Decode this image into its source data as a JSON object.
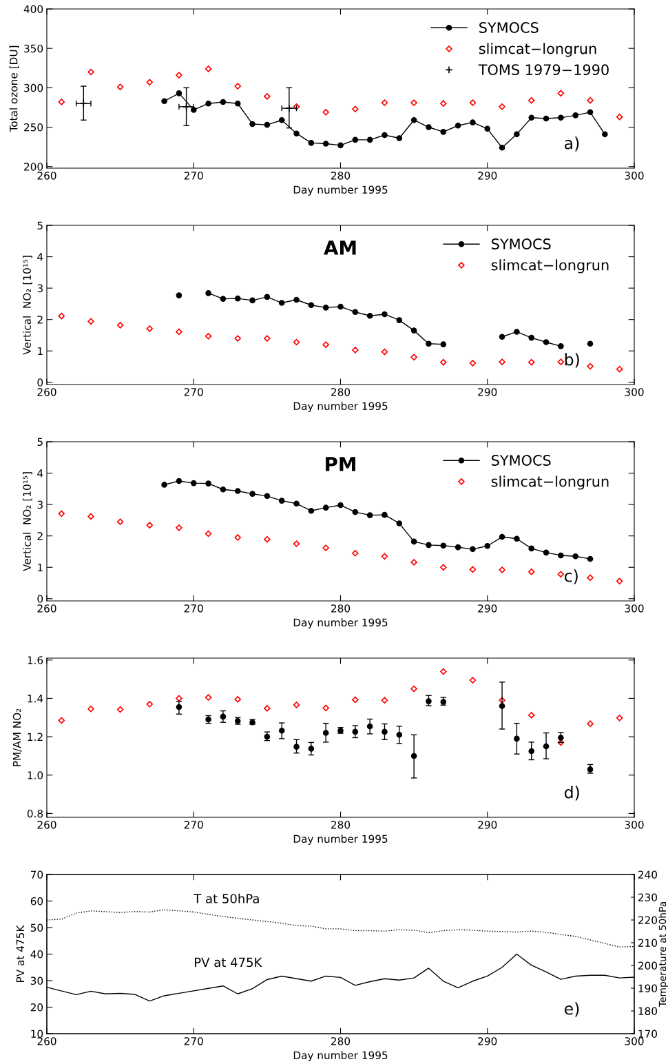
{
  "chart_data": [
    {
      "type": "line",
      "xlabel": "Day number 1995",
      "ylabel": "Total ozone [DU]",
      "xlim": [
        260,
        300
      ],
      "xticks": [
        260,
        270,
        280,
        290,
        300
      ],
      "ylim": [
        198,
        400
      ],
      "yticks": [
        200,
        250,
        300,
        350,
        400
      ],
      "legend": "top right",
      "annotations": [
        "a)"
      ],
      "grid": false,
      "series": [
        {
          "name": "SYMOCS",
          "marker": "circle",
          "color": "#000000",
          "x": [
            268,
            269,
            270,
            271,
            272,
            273,
            274,
            275,
            276,
            277,
            278,
            279,
            280,
            281,
            282,
            283,
            284,
            285,
            286,
            287,
            288,
            289,
            290,
            291,
            292,
            293,
            294,
            295,
            296,
            297,
            298
          ],
          "values": [
            283,
            293,
            272,
            280,
            282,
            280,
            254,
            253,
            259,
            242,
            230,
            229,
            227,
            234,
            234,
            240,
            236,
            259,
            250,
            244,
            252,
            256,
            248,
            224,
            241,
            262,
            261,
            262,
            265,
            269,
            241
          ]
        },
        {
          "name": "slimcat−longrun",
          "type": "scatter",
          "marker": "diamond",
          "color": "#ff0000",
          "x": [
            261,
            263,
            265,
            267,
            269,
            271,
            273,
            275,
            277,
            279,
            281,
            283,
            285,
            287,
            289,
            291,
            293,
            295,
            297,
            299
          ],
          "values": [
            282,
            320,
            301,
            307,
            316,
            324,
            302,
            289,
            276,
            269,
            273,
            281,
            281,
            280,
            281,
            276,
            284,
            293,
            284,
            263
          ]
        },
        {
          "name": "TOMS 1979−1990",
          "type": "scatter",
          "marker": "cross",
          "color": "#000000",
          "x": [
            262.5,
            269.5,
            276.5
          ],
          "values": [
            280,
            276,
            274
          ],
          "errors": [
            [
              259,
              302
            ],
            [
              252,
              300
            ],
            [
              249,
              300
            ]
          ],
          "xerrors": [
            0.5,
            0.5,
            0.5
          ]
        }
      ]
    },
    {
      "type": "line",
      "title": "AM",
      "xlabel": "Day number 1995",
      "ylabel": "Vertical  NO₂ [10¹⁵]",
      "xlim": [
        260,
        300
      ],
      "xticks": [
        260,
        270,
        280,
        290,
        300
      ],
      "ylim": [
        -0.07,
        5
      ],
      "yticks": [
        0,
        1,
        2,
        3,
        4,
        5
      ],
      "legend": "top right",
      "annotations": [
        "b)"
      ],
      "series": [
        {
          "name": "SYMOCS",
          "marker": "circle",
          "color": "#000000",
          "x": [
            269,
            270,
            271,
            272,
            273,
            274,
            275,
            276,
            277,
            278,
            279,
            280,
            281,
            282,
            283,
            284,
            285,
            286,
            287,
            288,
            289,
            290,
            291,
            292,
            293,
            294,
            295,
            296,
            297
          ],
          "values": [
            2.77,
            null,
            2.84,
            2.66,
            2.67,
            2.61,
            2.72,
            2.53,
            2.63,
            2.46,
            2.38,
            2.41,
            2.24,
            2.12,
            2.17,
            1.98,
            1.65,
            1.23,
            1.21,
            null,
            null,
            null,
            1.45,
            1.61,
            1.42,
            1.28,
            1.15,
            null,
            1.23
          ]
        },
        {
          "name": "slimcat−longrun",
          "type": "scatter",
          "marker": "diamond",
          "color": "#ff0000",
          "x": [
            261,
            263,
            265,
            267,
            269,
            271,
            273,
            275,
            277,
            279,
            281,
            283,
            285,
            287,
            289,
            291,
            293,
            295,
            297,
            299
          ],
          "values": [
            2.11,
            1.94,
            1.82,
            1.71,
            1.61,
            1.47,
            1.4,
            1.4,
            1.28,
            1.2,
            1.03,
            0.97,
            0.8,
            0.64,
            0.61,
            0.65,
            0.64,
            0.65,
            0.51,
            0.42
          ]
        }
      ]
    },
    {
      "type": "line",
      "title": "PM",
      "xlabel": "Day number 1995",
      "ylabel": "Vertical  NO₂ [10¹⁵]",
      "xlim": [
        260,
        300
      ],
      "xticks": [
        260,
        270,
        280,
        290,
        300
      ],
      "ylim": [
        -0.07,
        5
      ],
      "yticks": [
        0,
        1,
        2,
        3,
        4,
        5
      ],
      "legend": "top right",
      "annotations": [
        "c)"
      ],
      "series": [
        {
          "name": "SYMOCS",
          "marker": "circle",
          "color": "#000000",
          "x": [
            268,
            269,
            270,
            271,
            272,
            273,
            274,
            275,
            276,
            277,
            278,
            279,
            280,
            281,
            282,
            283,
            284,
            285,
            286,
            287,
            288,
            289,
            290,
            291,
            292,
            293,
            294,
            295,
            296,
            297
          ],
          "values": [
            3.63,
            3.75,
            3.68,
            3.67,
            3.48,
            3.43,
            3.34,
            3.27,
            3.12,
            3.03,
            2.8,
            2.9,
            2.98,
            2.76,
            2.66,
            2.67,
            2.4,
            1.82,
            1.71,
            1.69,
            1.64,
            1.58,
            1.68,
            1.97,
            1.91,
            1.6,
            1.47,
            1.38,
            1.35,
            1.27
          ]
        },
        {
          "name": "slimcat−longrun",
          "type": "scatter",
          "marker": "diamond",
          "color": "#ff0000",
          "x": [
            261,
            263,
            265,
            267,
            269,
            271,
            273,
            275,
            277,
            279,
            281,
            283,
            285,
            287,
            289,
            291,
            293,
            295,
            297,
            299
          ],
          "values": [
            2.71,
            2.62,
            2.45,
            2.34,
            2.26,
            2.07,
            1.95,
            1.89,
            1.75,
            1.62,
            1.45,
            1.35,
            1.16,
            1.0,
            0.93,
            0.92,
            0.86,
            0.78,
            0.67,
            0.56
          ]
        }
      ]
    },
    {
      "type": "scatter",
      "xlabel": "Day number 1995",
      "ylabel": "PM/AM NO₂",
      "xlim": [
        260,
        300
      ],
      "xticks": [
        260,
        270,
        280,
        290,
        300
      ],
      "ylim": [
        0.78,
        1.61
      ],
      "yticks": [
        {
          "value": 0.8,
          "label": "0.8"
        },
        {
          "value": 1.0,
          "label": "1.0"
        },
        {
          "value": 1.2,
          "label": "1.2"
        },
        {
          "value": 1.4,
          "label": "1.4"
        },
        {
          "value": 1.6,
          "label": "1.6"
        }
      ],
      "annotations": [
        "d)"
      ],
      "series": [
        {
          "marker": "diamond",
          "color": "#ff0000",
          "x": [
            261,
            263,
            265,
            267,
            269,
            271,
            273,
            275,
            277,
            279,
            281,
            283,
            285,
            287,
            289,
            291,
            293,
            295,
            297,
            299
          ],
          "values": [
            1.285,
            1.345,
            1.342,
            1.37,
            1.4,
            1.405,
            1.395,
            1.348,
            1.366,
            1.35,
            1.393,
            1.39,
            1.45,
            1.54,
            1.495,
            1.39,
            1.312,
            1.17,
            1.268,
            1.298
          ]
        },
        {
          "marker": "circle",
          "color": "#000000",
          "x": [
            269,
            271,
            272,
            273,
            274,
            275,
            276,
            277,
            278,
            279,
            280,
            281,
            282,
            283,
            284,
            285,
            286,
            287,
            291,
            292,
            293,
            294,
            295,
            297
          ],
          "values": [
            1.355,
            1.29,
            1.305,
            1.282,
            1.275,
            1.2,
            1.232,
            1.148,
            1.138,
            1.22,
            1.232,
            1.226,
            1.254,
            1.226,
            1.21,
            1.1,
            1.385,
            1.382,
            1.36,
            1.19,
            1.125,
            1.15,
            1.195,
            1.03
          ],
          "errors": [
            [
              1.318,
              1.385
            ],
            [
              1.27,
              1.31
            ],
            [
              1.275,
              1.335
            ],
            [
              1.265,
              1.3
            ],
            [
              1.265,
              1.29
            ],
            [
              1.18,
              1.225
            ],
            [
              1.19,
              1.272
            ],
            [
              1.115,
              1.185
            ],
            [
              1.105,
              1.17
            ],
            [
              1.172,
              1.27
            ],
            [
              1.218,
              1.248
            ],
            [
              1.195,
              1.258
            ],
            [
              1.215,
              1.292
            ],
            [
              1.185,
              1.267
            ],
            [
              1.165,
              1.255
            ],
            [
              0.985,
              1.21
            ],
            [
              1.362,
              1.415
            ],
            [
              1.365,
              1.405
            ],
            [
              1.24,
              1.485
            ],
            [
              1.11,
              1.27
            ],
            [
              1.08,
              1.172
            ],
            [
              1.085,
              1.22
            ],
            [
              1.17,
              1.222
            ],
            [
              1.01,
              1.055
            ]
          ]
        }
      ]
    },
    {
      "type": "line",
      "xlabel": "Day number 1995",
      "ylabel": "PV at 475K",
      "y2label": "Temperature at 50hPa",
      "xlim": [
        260,
        300
      ],
      "xticks": [
        260,
        270,
        280,
        290,
        300
      ],
      "ylim": [
        10,
        70
      ],
      "yticks": [
        10,
        20,
        30,
        40,
        50,
        60,
        70
      ],
      "y2lim": [
        170,
        240
      ],
      "y2ticks": [
        170,
        180,
        190,
        200,
        210,
        220,
        230,
        240
      ],
      "annotations": [
        "T at 50hPa",
        "PV at 475K",
        "e)"
      ],
      "series": [
        {
          "color": "#000000",
          "line_style": "solid",
          "x": [
            260,
            262,
            263,
            264,
            265,
            266,
            267,
            268,
            272,
            273,
            274,
            275,
            276,
            278,
            279,
            280,
            281,
            282,
            283,
            284,
            285,
            286,
            287,
            288,
            289,
            290,
            291,
            292,
            293,
            294,
            295,
            296,
            297,
            298,
            299,
            300
          ],
          "values": [
            27.5,
            24.7,
            26.0,
            25.0,
            25.2,
            24.8,
            22.3,
            24.3,
            28.0,
            25.0,
            27.0,
            30.4,
            31.7,
            29.8,
            31.7,
            31.2,
            28.2,
            29.6,
            30.7,
            30.2,
            31.0,
            34.7,
            29.8,
            27.3,
            29.8,
            31.7,
            35.0,
            40.0,
            35.8,
            33.3,
            30.5,
            31.7,
            32.0,
            32.0,
            31.0,
            31.3
          ]
        },
        {
          "axis": "y2",
          "color": "#000000",
          "line_style": "dotted",
          "x": [
            260,
            261,
            262,
            263,
            265,
            266,
            267,
            268,
            270,
            272,
            274,
            276,
            277,
            278,
            279,
            280,
            281,
            282,
            283,
            284,
            285,
            286,
            287,
            288,
            289,
            290,
            291,
            292,
            293,
            294,
            295,
            296,
            297,
            298,
            299,
            300
          ],
          "values": [
            220.0,
            220.4,
            223.0,
            224.0,
            223.3,
            223.7,
            223.5,
            224.5,
            223.5,
            221.5,
            220.0,
            218.6,
            217.5,
            217.3,
            216.1,
            216.1,
            215.3,
            215.3,
            215.1,
            215.7,
            215.5,
            214.4,
            215.3,
            215.7,
            215.5,
            215.1,
            214.9,
            214.7,
            215.1,
            214.6,
            213.6,
            212.8,
            211.2,
            209.7,
            208.1,
            208.3
          ]
        }
      ]
    }
  ]
}
